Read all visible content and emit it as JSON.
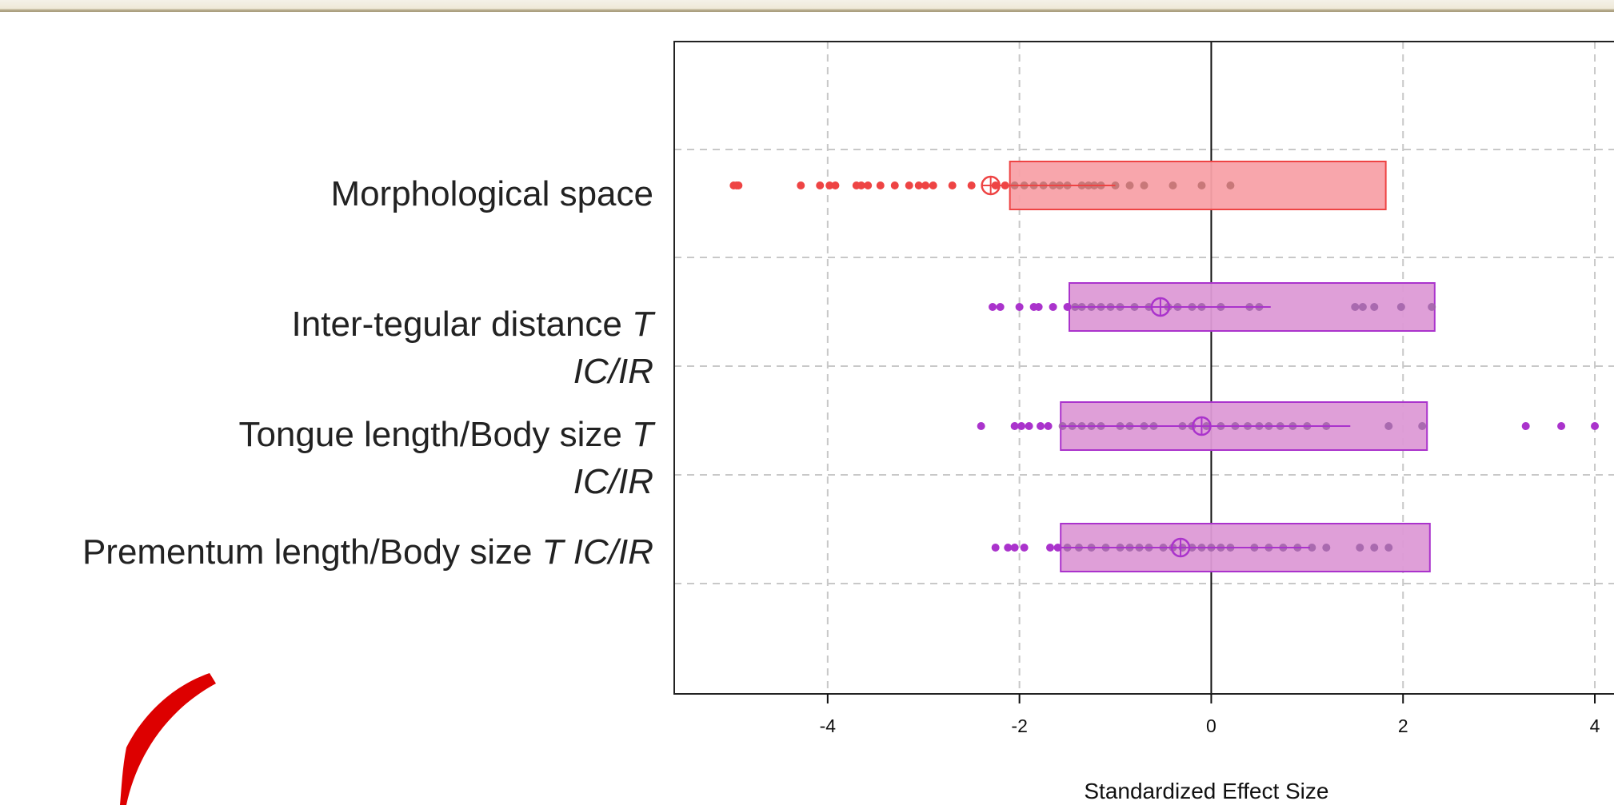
{
  "chart_data": {
    "type": "forest",
    "xlabel": "Standardized Effect Size",
    "xlim": [
      -5.6,
      4.3
    ],
    "xticks": [
      -4,
      -2,
      0,
      2,
      4
    ],
    "grid": true,
    "reference_line_x": 0,
    "rows": [
      {
        "label": "Morphological space",
        "label_italic": "",
        "label_line2": "",
        "color": "#ee4444",
        "fill": "#f8a1a8",
        "box": [
          -2.1,
          1.82
        ],
        "mean": -2.3,
        "ci": [
          -2.3,
          -1.0
        ],
        "points": [
          -4.98,
          -4.95,
          -4.93,
          -4.28,
          -4.08,
          -3.98,
          -3.92,
          -3.7,
          -3.65,
          -3.58,
          -3.45,
          -3.3,
          -3.15,
          -3.05,
          -2.98,
          -2.9,
          -2.7,
          -2.5,
          -2.25,
          -2.15,
          -2.05,
          -1.95,
          -1.85,
          -1.75,
          -1.65,
          -1.58,
          -1.5,
          -1.35,
          -1.28,
          -1.22,
          -1.15,
          -1.0,
          -0.85,
          -0.7,
          -0.4,
          -0.1,
          0.2
        ]
      },
      {
        "label": "Inter-tegular distance",
        "label_italic": "T",
        "label_line2": "IC/IR",
        "color": "#aa33cc",
        "fill": "#dd9ad6",
        "box": [
          -1.48,
          2.33
        ],
        "mean": -0.53,
        "ci": [
          -1.45,
          0.62
        ],
        "points": [
          -2.28,
          -2.2,
          -2.0,
          -1.85,
          -1.8,
          -1.65,
          -1.5,
          -1.42,
          -1.35,
          -1.25,
          -1.15,
          -1.05,
          -0.95,
          -0.8,
          -0.65,
          -0.45,
          -0.35,
          -0.2,
          -0.1,
          0.1,
          0.4,
          0.5,
          1.5,
          1.58,
          1.7,
          1.98,
          2.3
        ]
      },
      {
        "label": "Tongue length/Body size",
        "label_italic": "T",
        "label_line2": "IC/IR",
        "color": "#aa33cc",
        "fill": "#dd9ad6",
        "box": [
          -1.57,
          2.25
        ],
        "mean": -0.1,
        "ci": [
          -1.57,
          1.45
        ],
        "points": [
          -2.4,
          -2.05,
          -1.98,
          -1.9,
          -1.78,
          -1.7,
          -1.55,
          -1.45,
          -1.35,
          -1.25,
          -1.15,
          -0.95,
          -0.85,
          -0.7,
          -0.6,
          -0.3,
          -0.2,
          -0.05,
          0.1,
          0.25,
          0.38,
          0.5,
          0.6,
          0.72,
          0.85,
          1.0,
          1.2,
          1.85,
          2.2,
          3.28,
          3.65,
          4.0
        ]
      },
      {
        "label": "Prementum length/Body size",
        "label_italic": "T IC/IR",
        "label_line2": "",
        "color": "#aa33cc",
        "fill": "#dd9ad6",
        "box": [
          -1.57,
          2.28
        ],
        "mean": -0.32,
        "ci": [
          -1.57,
          1.03
        ],
        "points": [
          -2.25,
          -2.12,
          -2.05,
          -1.95,
          -1.68,
          -1.6,
          -1.5,
          -1.38,
          -1.25,
          -1.1,
          -0.95,
          -0.85,
          -0.75,
          -0.65,
          -0.5,
          -0.4,
          -0.3,
          -0.2,
          -0.1,
          0.0,
          0.1,
          0.2,
          0.45,
          0.6,
          0.75,
          0.9,
          1.05,
          1.2,
          1.55,
          1.7,
          1.85
        ]
      }
    ]
  }
}
